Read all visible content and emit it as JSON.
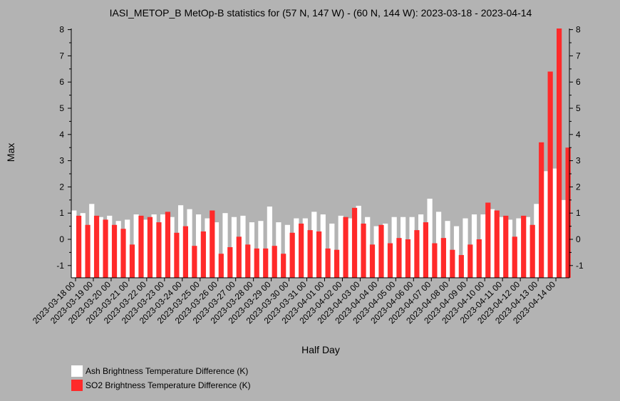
{
  "chart_data": {
    "type": "bar",
    "title": "IASI_METOP_B MetOp-B statistics for (57 N, 147 W) - (60 N, 144 W): 2023-03-18 - 2023-04-14",
    "xlabel": "Half Day",
    "ylabel": "Max",
    "ylim": [
      -1.45,
      8.1
    ],
    "yticks": [
      -1,
      0,
      1,
      2,
      3,
      4,
      5,
      6,
      7,
      8
    ],
    "grid": false,
    "legend_position": "bottom-left",
    "x_tick_labels": [
      "2023-03-18 00",
      "2023-03-19 00",
      "2023-03-20 00",
      "2023-03-21 00",
      "2023-03-22 00",
      "2023-03-23 00",
      "2023-03-24 00",
      "2023-03-25 00",
      "2023-03-26 00",
      "2023-03-27 00",
      "2023-03-28 00",
      "2023-03-29 00",
      "2023-03-30 00",
      "2023-03-31 00",
      "2023-04-01 00",
      "2023-04-02 00",
      "2023-04-03 00",
      "2023-04-04 00",
      "2023-04-05 00",
      "2023-04-06 00",
      "2023-04-07 00",
      "2023-04-08 00",
      "2023-04-09 00",
      "2023-04-10 00",
      "2023-04-11 00",
      "2023-04-12 00",
      "2023-04-13 00",
      "2023-04-14 00"
    ],
    "series": [
      {
        "name": "Ash Brightness Temperature Difference (K)",
        "color": "#ffffff",
        "values": [
          1.1,
          1.0,
          1.35,
          0.85,
          0.9,
          0.7,
          0.75,
          0.95,
          0.75,
          0.95,
          0.95,
          0.85,
          1.3,
          1.15,
          0.95,
          0.8,
          0.65,
          1.0,
          0.85,
          0.9,
          0.65,
          0.7,
          1.25,
          0.65,
          0.55,
          0.8,
          0.8,
          1.05,
          0.95,
          0.6,
          0.9,
          0.8,
          1.28,
          0.85,
          0.5,
          0.6,
          0.85,
          0.85,
          0.85,
          0.95,
          1.55,
          1.05,
          0.7,
          0.5,
          0.8,
          0.95,
          0.95,
          1.15,
          0.85,
          0.75,
          0.8,
          0.85,
          1.35,
          2.6,
          2.7,
          1.5
        ]
      },
      {
        "name": "SO2 Brightness Temperature Difference (K)",
        "color": "#ff2a2a",
        "values": [
          0.9,
          0.55,
          0.9,
          0.75,
          0.55,
          0.4,
          -0.2,
          0.9,
          0.85,
          0.65,
          1.05,
          0.25,
          0.5,
          -0.25,
          0.3,
          1.1,
          -0.55,
          -0.3,
          0.1,
          -0.2,
          -0.35,
          -0.35,
          -0.25,
          -0.55,
          0.25,
          0.6,
          0.35,
          0.3,
          -0.35,
          -0.4,
          0.85,
          1.2,
          0.6,
          -0.2,
          0.55,
          -0.15,
          0.05,
          0.0,
          0.35,
          0.65,
          -0.15,
          0.05,
          -0.4,
          -0.6,
          -0.2,
          0.0,
          1.4,
          1.1,
          0.9,
          0.1,
          0.9,
          0.55,
          3.7,
          6.4,
          8.1,
          3.5
        ]
      }
    ]
  }
}
